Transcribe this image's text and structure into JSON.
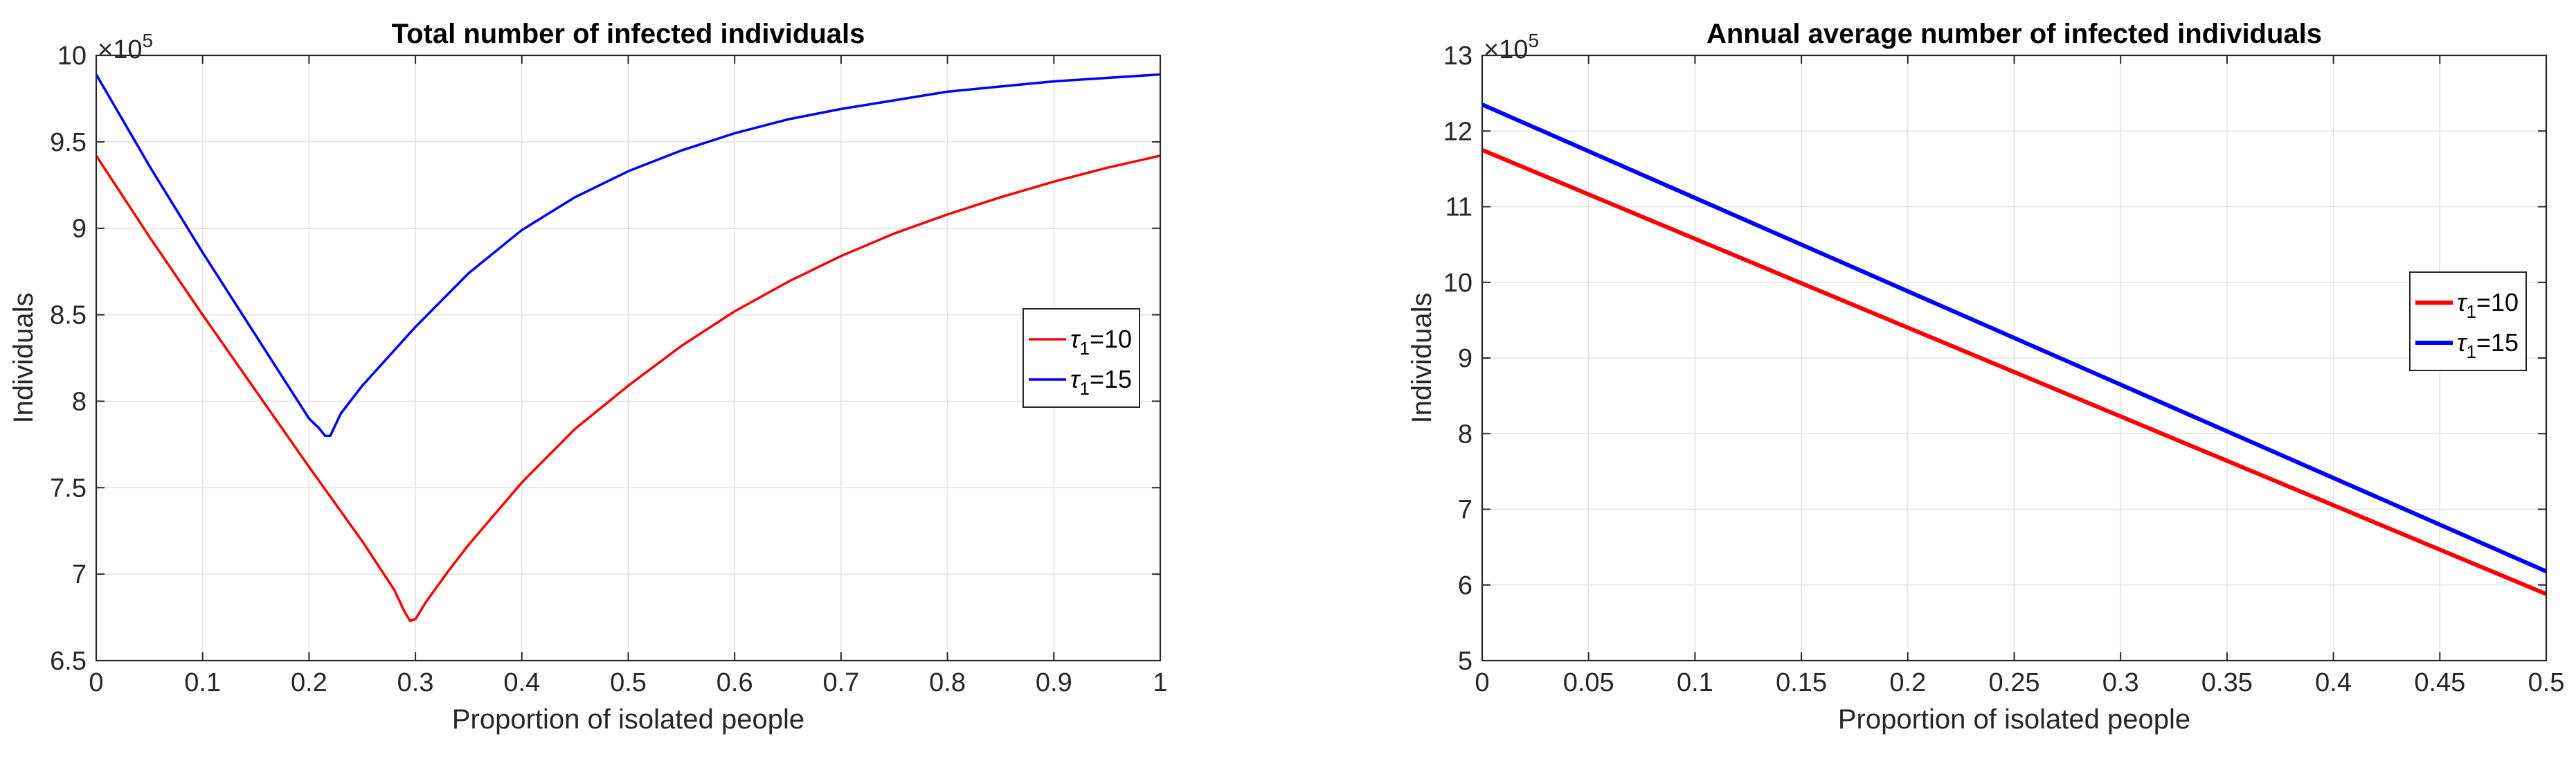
{
  "chart_data": [
    {
      "type": "line",
      "title": "Total number of infected individuals",
      "xlabel": "Proportion of isolated people",
      "ylabel": "Individuals",
      "exponent_base": "×10",
      "exponent_power": "5",
      "xlim": [
        0,
        1
      ],
      "ylim": [
        6.5,
        10
      ],
      "xticks": [
        0,
        0.1,
        0.2,
        0.3,
        0.4,
        0.5,
        0.6,
        0.7,
        0.8,
        0.9,
        1
      ],
      "xtick_labels": [
        "0",
        "0.1",
        "0.2",
        "0.3",
        "0.4",
        "0.5",
        "0.6",
        "0.7",
        "0.8",
        "0.9",
        "1"
      ],
      "yticks": [
        6.5,
        7,
        7.5,
        8,
        8.5,
        9,
        9.5,
        10
      ],
      "ytick_labels": [
        "6.5",
        "7",
        "7.5",
        "8",
        "8.5",
        "9",
        "9.5",
        "10"
      ],
      "grid": true,
      "legend_position": "right",
      "series": [
        {
          "name": "τ1=10",
          "legend_symbol": "τ",
          "legend_sub": "1",
          "legend_value": "=10",
          "color": "#ff0000",
          "x": [
            0,
            0.05,
            0.1,
            0.15,
            0.2,
            0.25,
            0.28,
            0.29,
            0.295,
            0.3,
            0.31,
            0.33,
            0.35,
            0.4,
            0.45,
            0.5,
            0.55,
            0.6,
            0.65,
            0.7,
            0.75,
            0.8,
            0.85,
            0.9,
            0.95,
            1
          ],
          "values": [
            9.42,
            8.95,
            8.5,
            8.06,
            7.62,
            7.19,
            6.91,
            6.78,
            6.73,
            6.74,
            6.84,
            7.01,
            7.17,
            7.53,
            7.84,
            8.09,
            8.32,
            8.52,
            8.69,
            8.84,
            8.97,
            9.08,
            9.18,
            9.27,
            9.35,
            9.42
          ]
        },
        {
          "name": "τ1=15",
          "legend_symbol": "τ",
          "legend_sub": "1",
          "legend_value": "=15",
          "color": "#0000ff",
          "x": [
            0,
            0.05,
            0.1,
            0.15,
            0.2,
            0.21,
            0.215,
            0.22,
            0.23,
            0.25,
            0.3,
            0.35,
            0.4,
            0.45,
            0.5,
            0.55,
            0.6,
            0.65,
            0.7,
            0.75,
            0.8,
            0.85,
            0.9,
            0.95,
            1
          ],
          "values": [
            9.89,
            9.36,
            8.86,
            8.38,
            7.9,
            7.84,
            7.8,
            7.8,
            7.93,
            8.09,
            8.43,
            8.74,
            8.99,
            9.18,
            9.33,
            9.45,
            9.55,
            9.63,
            9.69,
            9.74,
            9.79,
            9.82,
            9.85,
            9.87,
            9.89
          ]
        }
      ]
    },
    {
      "type": "line",
      "title": "Annual average number of infected individuals",
      "xlabel": "Proportion of isolated people",
      "ylabel": "Individuals",
      "exponent_base": "×10",
      "exponent_power": "5",
      "xlim": [
        0,
        0.5
      ],
      "ylim": [
        5,
        13
      ],
      "xticks": [
        0,
        0.05,
        0.1,
        0.15,
        0.2,
        0.25,
        0.3,
        0.35,
        0.4,
        0.45,
        0.5
      ],
      "xtick_labels": [
        "0",
        "0.05",
        "0.1",
        "0.15",
        "0.2",
        "0.25",
        "0.3",
        "0.35",
        "0.4",
        "0.45",
        "0.5"
      ],
      "yticks": [
        5,
        6,
        7,
        8,
        9,
        10,
        11,
        12,
        13
      ],
      "ytick_labels": [
        "5",
        "6",
        "7",
        "8",
        "9",
        "10",
        "11",
        "12",
        "13"
      ],
      "grid": true,
      "legend_position": "right",
      "series": [
        {
          "name": "τ1=10",
          "legend_symbol": "τ",
          "legend_sub": "1",
          "legend_value": "=10",
          "color": "#ff0000",
          "x": [
            0,
            0.5
          ],
          "values": [
            11.75,
            5.88
          ]
        },
        {
          "name": "τ1=15",
          "legend_symbol": "τ",
          "legend_sub": "1",
          "legend_value": "=15",
          "color": "#0000ff",
          "x": [
            0,
            0.5
          ],
          "values": [
            12.35,
            6.18
          ]
        }
      ]
    }
  ]
}
